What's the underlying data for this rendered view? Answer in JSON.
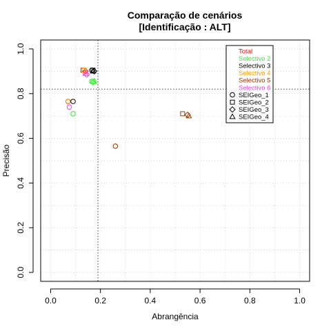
{
  "chart_data": {
    "type": "scatter",
    "title": "Comparação de cenários",
    "subtitle": "[Identificação : ALT]",
    "xlabel": "Abrangência",
    "ylabel": "Precisão",
    "xlim": [
      0,
      1
    ],
    "ylim": [
      0,
      1
    ],
    "xticks": [
      0,
      0.2,
      0.4,
      0.6,
      0.8,
      1
    ],
    "yticks": [
      0,
      0.2,
      0.4,
      0.6,
      0.8,
      1
    ],
    "xtick_labels": [
      "0.0",
      "0.2",
      "0.4",
      "0.6",
      "0.8",
      "1.0"
    ],
    "ytick_labels": [
      "0.0",
      "0.2",
      "0.4",
      "0.6",
      "0.8",
      "1.0"
    ],
    "grid": true,
    "reference_lines": {
      "x": 0.19,
      "y": 0.82
    },
    "legend_position": "top-right",
    "scenarios": [
      {
        "name": "Total",
        "color": "#ff0000"
      },
      {
        "name": "Selectivo 2",
        "color": "#33ee33"
      },
      {
        "name": "Selectivo 3",
        "color": "#000000"
      },
      {
        "name": "Selectivo 4",
        "color": "#ff9900"
      },
      {
        "name": "Selectivo 5",
        "color": "#993300"
      },
      {
        "name": "Selectivo 6",
        "color": "#ff33ff"
      }
    ],
    "methods": [
      {
        "name": "SEIGeo_1",
        "marker": "circle"
      },
      {
        "name": "SEIGeo_2",
        "marker": "square"
      },
      {
        "name": "SEIGeo_3",
        "marker": "diamond"
      },
      {
        "name": "SEIGeo_4",
        "marker": "triangle"
      }
    ],
    "points": [
      {
        "scenario": "Selectivo 5",
        "method": "SEIGeo_1",
        "x": 0.26,
        "y": 0.565
      },
      {
        "scenario": "Selectivo 5",
        "method": "SEIGeo_2",
        "x": 0.53,
        "y": 0.71
      },
      {
        "scenario": "Selectivo 5",
        "method": "SEIGeo_3",
        "x": 0.55,
        "y": 0.705
      },
      {
        "scenario": "Selectivo 5",
        "method": "SEIGeo_4",
        "x": 0.555,
        "y": 0.7
      },
      {
        "scenario": "Selectivo 5",
        "method": "SEIGeo_1",
        "x": 0.07,
        "y": 0.765
      },
      {
        "scenario": "Total",
        "method": "SEIGeo_1",
        "x": 0.07,
        "y": 0.765
      },
      {
        "scenario": "Selectivo 4",
        "method": "SEIGeo_1",
        "x": 0.07,
        "y": 0.765
      },
      {
        "scenario": "Selectivo 3",
        "method": "SEIGeo_1",
        "x": 0.09,
        "y": 0.765
      },
      {
        "scenario": "Selectivo 6",
        "method": "SEIGeo_1",
        "x": 0.075,
        "y": 0.74
      },
      {
        "scenario": "Selectivo 2",
        "method": "SEIGeo_1",
        "x": 0.09,
        "y": 0.71
      },
      {
        "scenario": "Total",
        "method": "SEIGeo_2",
        "x": 0.13,
        "y": 0.905
      },
      {
        "scenario": "Selectivo 4",
        "method": "SEIGeo_2",
        "x": 0.135,
        "y": 0.905
      },
      {
        "scenario": "Selectivo 5",
        "method": "SEIGeo_3",
        "x": 0.14,
        "y": 0.9
      },
      {
        "scenario": "Selectivo 4",
        "method": "SEIGeo_4",
        "x": 0.14,
        "y": 0.9
      },
      {
        "scenario": "Selectivo 6",
        "method": "SEIGeo_3",
        "x": 0.145,
        "y": 0.885
      },
      {
        "scenario": "Selectivo 6",
        "method": "SEIGeo_4",
        "x": 0.14,
        "y": 0.89
      },
      {
        "scenario": "Selectivo 3",
        "method": "SEIGeo_1",
        "x": 0.165,
        "y": 0.905
      },
      {
        "scenario": "Selectivo 3",
        "method": "SEIGeo_2",
        "x": 0.17,
        "y": 0.905
      },
      {
        "scenario": "Selectivo 3",
        "method": "SEIGeo_3",
        "x": 0.175,
        "y": 0.9
      },
      {
        "scenario": "Selectivo 3",
        "method": "SEIGeo_4",
        "x": 0.17,
        "y": 0.9
      },
      {
        "scenario": "Selectivo 2",
        "method": "SEIGeo_1",
        "x": 0.165,
        "y": 0.855
      },
      {
        "scenario": "Selectivo 2",
        "method": "SEIGeo_2",
        "x": 0.17,
        "y": 0.855
      },
      {
        "scenario": "Selectivo 2",
        "method": "SEIGeo_3",
        "x": 0.17,
        "y": 0.85
      },
      {
        "scenario": "Selectivo 2",
        "method": "SEIGeo_4",
        "x": 0.175,
        "y": 0.855
      }
    ]
  }
}
